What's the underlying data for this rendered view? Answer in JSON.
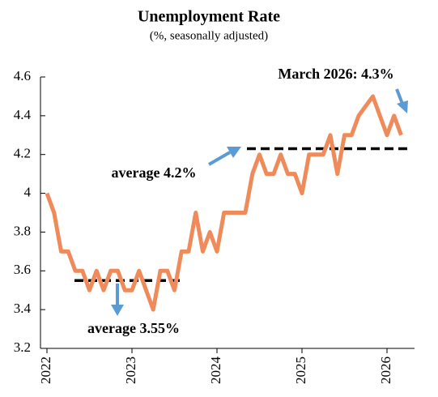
{
  "chart_data": {
    "type": "line",
    "title": "Unemployment Rate",
    "subtitle": "(%, seasonally adjusted)",
    "categories": [
      "2022",
      null,
      null,
      null,
      null,
      null,
      null,
      null,
      null,
      null,
      null,
      null,
      "2023",
      null,
      null,
      null,
      null,
      null,
      null,
      null,
      null,
      null,
      null,
      null,
      "2024",
      null,
      null,
      null,
      null,
      null,
      null,
      null,
      null,
      null,
      null,
      null,
      "2025",
      null,
      null,
      null,
      null,
      null,
      null,
      null,
      null,
      null,
      null,
      null,
      "2026",
      null,
      null
    ],
    "series": [
      {
        "name": "Unemployment Rate",
        "color": "#ef8b5a",
        "values": [
          4.0,
          3.9,
          3.7,
          3.7,
          3.6,
          3.6,
          3.5,
          3.6,
          3.5,
          3.6,
          3.6,
          3.5,
          3.5,
          3.6,
          3.5,
          3.4,
          3.6,
          3.6,
          3.5,
          3.7,
          3.7,
          3.9,
          3.7,
          3.8,
          3.7,
          3.9,
          3.9,
          3.9,
          3.9,
          4.1,
          4.2,
          4.1,
          4.1,
          4.2,
          4.1,
          4.1,
          4.0,
          4.2,
          4.2,
          4.2,
          4.3,
          4.1,
          4.3,
          4.3,
          4.4,
          4.45,
          4.5,
          4.4,
          4.3,
          4.4,
          4.3
        ]
      }
    ],
    "ylim": [
      3.2,
      4.6
    ],
    "yticks": [
      3.2,
      3.4,
      3.6,
      3.8,
      4,
      4.2,
      4.4,
      4.6
    ],
    "averages": [
      {
        "text": "average 3.55%",
        "value": 3.55
      },
      {
        "text": "average 4.2%",
        "value": 4.23
      }
    ],
    "annotation": "March 2026: 4.3%"
  }
}
